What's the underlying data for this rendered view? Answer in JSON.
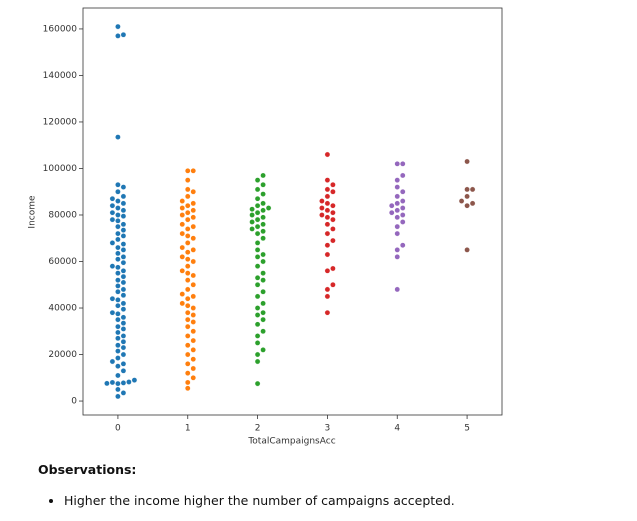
{
  "chart_data": {
    "type": "swarm",
    "x_label": "TotalCampaignsAcc",
    "y_label": "Income",
    "categories": [
      "0",
      "1",
      "2",
      "3",
      "4",
      "5"
    ],
    "colors": [
      "#1f77b4",
      "#ff7f0e",
      "#2ca02c",
      "#d62728",
      "#9467bd",
      "#8c564b"
    ],
    "values": [
      [
        2000,
        3500,
        5000,
        7500,
        7800,
        8000,
        8200,
        7600,
        9000,
        11000,
        13000,
        15000,
        16000,
        17000,
        18500,
        20000,
        21500,
        23000,
        24000,
        25500,
        27000,
        28000,
        29500,
        31000,
        32000,
        33500,
        35000,
        36000,
        37500,
        38000,
        39500,
        41000,
        42000,
        43500,
        44000,
        45500,
        47000,
        48000,
        49500,
        51000,
        52000,
        53500,
        55000,
        56000,
        57500,
        58000,
        59500,
        61000,
        62000,
        63500,
        65000,
        66000,
        67500,
        68000,
        69500,
        71000,
        72000,
        73500,
        75000,
        76000,
        77500,
        78000,
        79500,
        80000,
        81000,
        82000,
        83000,
        84000,
        85000,
        86000,
        87000,
        88000,
        90000,
        92000,
        93000,
        113500,
        157000,
        157500,
        161000
      ],
      [
        5500,
        8000,
        10000,
        12000,
        14000,
        16000,
        18000,
        20000,
        22000,
        24000,
        26000,
        28000,
        30000,
        32000,
        34000,
        35000,
        37000,
        38000,
        40000,
        41000,
        42000,
        44000,
        45000,
        46000,
        48000,
        50000,
        52000,
        54000,
        55000,
        56000,
        58000,
        60000,
        61000,
        62000,
        64000,
        65000,
        66000,
        68000,
        70000,
        71000,
        72000,
        74000,
        75000,
        76000,
        78000,
        79000,
        80000,
        81000,
        82000,
        83000,
        84000,
        85000,
        86000,
        88000,
        90000,
        91000,
        95000,
        99000,
        99000
      ],
      [
        7500,
        17000,
        20000,
        22000,
        25000,
        28000,
        30000,
        33000,
        35000,
        37000,
        38000,
        40000,
        42000,
        45000,
        47000,
        50000,
        52000,
        53000,
        55000,
        58000,
        60000,
        62000,
        63000,
        65000,
        68000,
        70000,
        72000,
        73000,
        74000,
        75000,
        76000,
        77000,
        78000,
        79000,
        80000,
        81000,
        82000,
        82500,
        83000,
        84000,
        85000,
        87000,
        89000,
        91000,
        93000,
        95000,
        97000
      ],
      [
        38000,
        45000,
        48000,
        50000,
        56000,
        57000,
        63000,
        67000,
        69000,
        72000,
        74000,
        76000,
        78000,
        79000,
        80000,
        81000,
        82000,
        83000,
        84000,
        85000,
        86000,
        88000,
        90000,
        91000,
        93000,
        95000,
        106000
      ],
      [
        48000,
        62000,
        65000,
        67000,
        72000,
        75000,
        77000,
        79000,
        80000,
        81000,
        82000,
        83000,
        84000,
        85000,
        86000,
        88000,
        90000,
        92000,
        95000,
        97000,
        102000,
        102000
      ],
      [
        65000,
        84000,
        85000,
        86000,
        88000,
        91000,
        91000,
        103000
      ]
    ],
    "ylim": [
      -6000,
      169000
    ],
    "yticks": [
      0,
      20000,
      40000,
      60000,
      80000,
      100000,
      120000,
      140000,
      160000
    ]
  },
  "observations": {
    "heading": "Observations:",
    "items": [
      "Higher the income higher the number of campaigns accepted."
    ]
  }
}
